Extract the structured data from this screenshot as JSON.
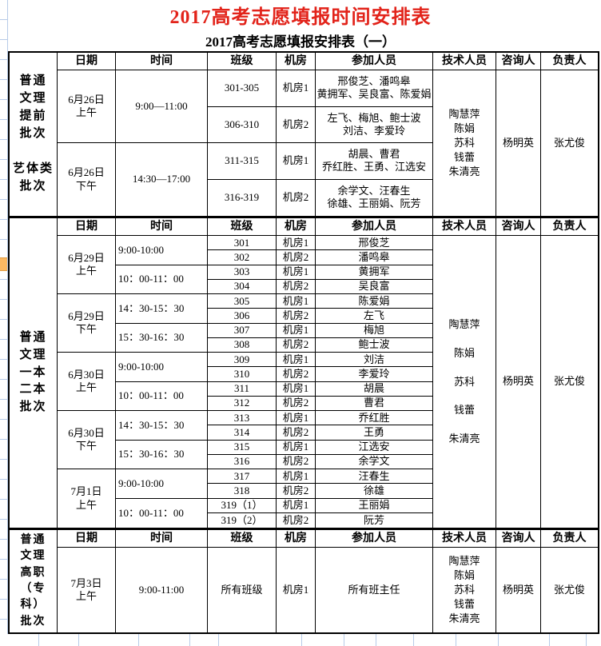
{
  "title": "2017高考志愿填报时间安排表",
  "subtitle": "2017高考志愿填报安排表（一）",
  "colors": {
    "title_red": "#e2231a",
    "grid_blue": "#b7cbe8",
    "highlight_orange": "#fcb962"
  },
  "columns": [
    "日期",
    "时间",
    "班级",
    "机房",
    "参加人员",
    "技术人员",
    "咨询人",
    "负责人"
  ],
  "section1": {
    "category_top": "普通\n文理\n提前\n批次",
    "category_bottom": "艺体类\n批次",
    "groups": [
      {
        "date": "6月26日\n上午",
        "time": "9:00—11:00",
        "rows": [
          {
            "cls": "301-305",
            "room": "机房1",
            "people": "邢俊芝、潘鸣皋\n黄拥军、吴良富、陈爱娟"
          },
          {
            "cls": "306-310",
            "room": "机房2",
            "people": "左飞、梅旭、鲍士波\n刘洁、李爱玲"
          }
        ]
      },
      {
        "date": "6月26日\n下午",
        "time": "14:30—17:00",
        "rows": [
          {
            "cls": "311-315",
            "room": "机房1",
            "people": "胡晨、曹君\n乔红胜、王勇、江选安"
          },
          {
            "cls": "316-319",
            "room": "机房2",
            "people": "余学文、汪春生\n徐雄、王丽娟、阮芳"
          }
        ]
      }
    ],
    "tech": "陶慧萍\n陈娟\n苏科\n钱蕾\n朱清亮",
    "consultant": "杨明英",
    "leader": "张尤俊"
  },
  "section2": {
    "category": "普通\n文理\n一本\n二本\n批次",
    "dates": [
      "6月29日\n上午",
      "6月29日\n下午",
      "6月30日\n上午",
      "6月30日\n下午",
      "7月1日\n上午"
    ],
    "times": [
      "9:00-10:00",
      "10：00-11：00",
      "14：30-15：30",
      "15：30-16：30",
      "9:00-10:00",
      "10：00-11：00",
      "14：30-15：30",
      "15：30-16：30",
      "9:00-10:00",
      "10：00-11：00"
    ],
    "rows": [
      {
        "cls": "301",
        "room": "机房1",
        "people": "邢俊芝"
      },
      {
        "cls": "302",
        "room": "机房2",
        "people": "潘鸣皋"
      },
      {
        "cls": "303",
        "room": "机房1",
        "people": "黄拥军"
      },
      {
        "cls": "304",
        "room": "机房2",
        "people": "吴良富"
      },
      {
        "cls": "305",
        "room": "机房1",
        "people": "陈爱娟"
      },
      {
        "cls": "306",
        "room": "机房2",
        "people": "左飞"
      },
      {
        "cls": "307",
        "room": "机房1",
        "people": "梅旭"
      },
      {
        "cls": "308",
        "room": "机房2",
        "people": "鲍士波"
      },
      {
        "cls": "309",
        "room": "机房1",
        "people": "刘洁"
      },
      {
        "cls": "310",
        "room": "机房2",
        "people": "李爱玲"
      },
      {
        "cls": "311",
        "room": "机房1",
        "people": "胡晨"
      },
      {
        "cls": "312",
        "room": "机房2",
        "people": "曹君"
      },
      {
        "cls": "313",
        "room": "机房1",
        "people": "乔红胜"
      },
      {
        "cls": "314",
        "room": "机房2",
        "people": "王勇"
      },
      {
        "cls": "315",
        "room": "机房1",
        "people": "江选安"
      },
      {
        "cls": "316",
        "room": "机房2",
        "people": "余学文"
      },
      {
        "cls": "317",
        "room": "机房1",
        "people": "汪春生"
      },
      {
        "cls": "318",
        "room": "机房2",
        "people": "徐雄"
      },
      {
        "cls": "319（1）",
        "room": "机房1",
        "people": "王丽娟"
      },
      {
        "cls": "319（2）",
        "room": "机房2",
        "people": "阮芳"
      }
    ],
    "tech": "陶慧萍\n陈娟\n苏科\n钱蕾\n朱清亮",
    "consultant": "杨明英",
    "leader": "张尤俊"
  },
  "section3": {
    "category": "普通\n文理\n高职\n（专\n科）\n批次",
    "date": "7月3日\n上午",
    "time": "9:00-11:00",
    "cls": "所有班级",
    "room": "机房1",
    "people": "所有班主任",
    "tech": "陶慧萍\n陈娟\n苏科\n钱蕾\n朱清亮",
    "consultant": "杨明英",
    "leader": "张尤俊"
  }
}
